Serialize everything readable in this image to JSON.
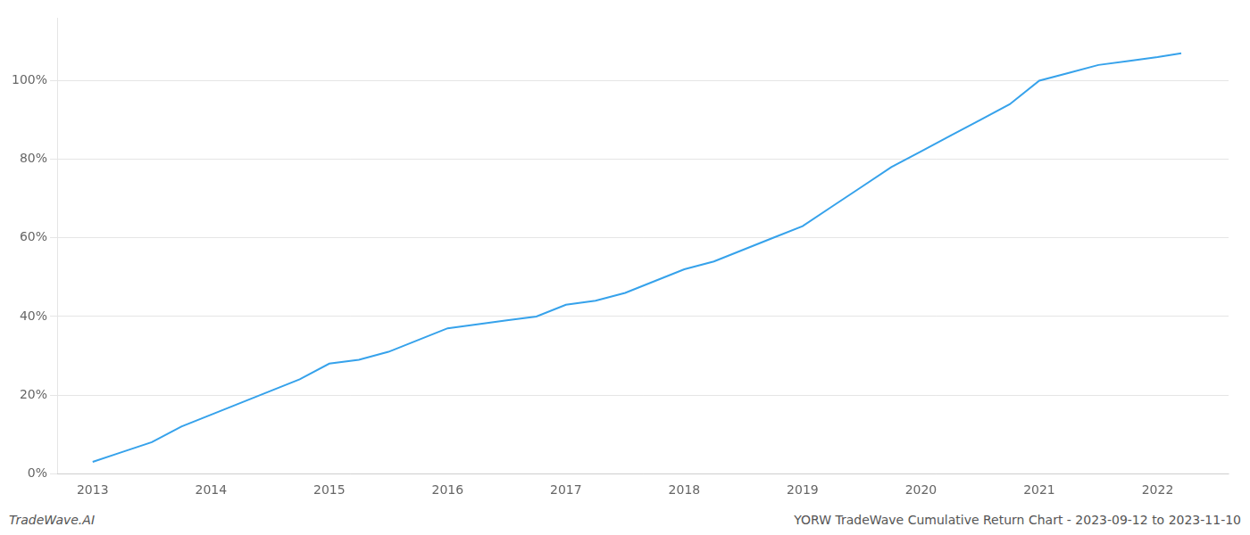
{
  "chart_data": {
    "type": "line",
    "x": [
      2013,
      2013.2,
      2013.5,
      2013.75,
      2014,
      2014.25,
      2014.5,
      2014.75,
      2015,
      2015.25,
      2015.5,
      2015.75,
      2016,
      2016.25,
      2016.5,
      2016.75,
      2017,
      2017.25,
      2017.5,
      2017.75,
      2018,
      2018.25,
      2018.5,
      2018.75,
      2019,
      2019.25,
      2019.5,
      2019.75,
      2020,
      2020.25,
      2020.5,
      2020.75,
      2021,
      2021.25,
      2021.5,
      2021.75,
      2022,
      2022.2
    ],
    "values": [
      3,
      5,
      8,
      12,
      15,
      18,
      21,
      24,
      28,
      29,
      31,
      34,
      37,
      38,
      39,
      40,
      43,
      44,
      46,
      49,
      52,
      54,
      57,
      60,
      63,
      68,
      73,
      78,
      82,
      86,
      90,
      94,
      100,
      102,
      104,
      105,
      106,
      107
    ],
    "xlim": [
      2012.7,
      2022.6
    ],
    "xticks": [
      2013,
      2014,
      2015,
      2016,
      2017,
      2018,
      2019,
      2020,
      2021,
      2022
    ],
    "ylim": [
      0,
      116
    ],
    "yticks": [
      {
        "value": 0,
        "label": "0%"
      },
      {
        "value": 20,
        "label": "20%"
      },
      {
        "value": 40,
        "label": "40%"
      },
      {
        "value": 60,
        "label": "60%"
      },
      {
        "value": 80,
        "label": "80%"
      },
      {
        "value": 100,
        "label": "100%"
      }
    ],
    "grid": true,
    "annotations": [
      "TradeWave.AI",
      "YORW TradeWave Cumulative Return Chart - 2023-09-12 to 2023-11-10"
    ]
  }
}
